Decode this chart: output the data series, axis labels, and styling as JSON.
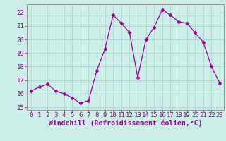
{
  "x": [
    0,
    1,
    2,
    3,
    4,
    5,
    6,
    7,
    8,
    9,
    10,
    11,
    12,
    13,
    14,
    15,
    16,
    17,
    18,
    19,
    20,
    21,
    22,
    23
  ],
  "y": [
    16.2,
    16.5,
    16.7,
    16.2,
    16.0,
    15.7,
    15.3,
    15.5,
    17.7,
    19.3,
    21.8,
    21.2,
    20.5,
    17.2,
    20.0,
    20.9,
    22.2,
    21.8,
    21.3,
    21.2,
    20.5,
    19.8,
    18.0,
    16.8
  ],
  "line_color": "#990099",
  "marker": "D",
  "marker_size": 2.5,
  "bg_color": "#cceee8",
  "grid_color": "#aacccc",
  "xlabel": "Windchill (Refroidissement éolien,°C)",
  "ylim": [
    14.8,
    22.6
  ],
  "xlim": [
    -0.5,
    23.5
  ],
  "yticks": [
    15,
    16,
    17,
    18,
    19,
    20,
    21,
    22
  ],
  "xticks": [
    0,
    1,
    2,
    3,
    4,
    5,
    6,
    7,
    8,
    9,
    10,
    11,
    12,
    13,
    14,
    15,
    16,
    17,
    18,
    19,
    20,
    21,
    22,
    23
  ],
  "tick_color": "#990099",
  "label_color": "#990099",
  "spine_color": "#888888",
  "tick_fontsize": 6.5,
  "xlabel_fontsize": 7.0
}
